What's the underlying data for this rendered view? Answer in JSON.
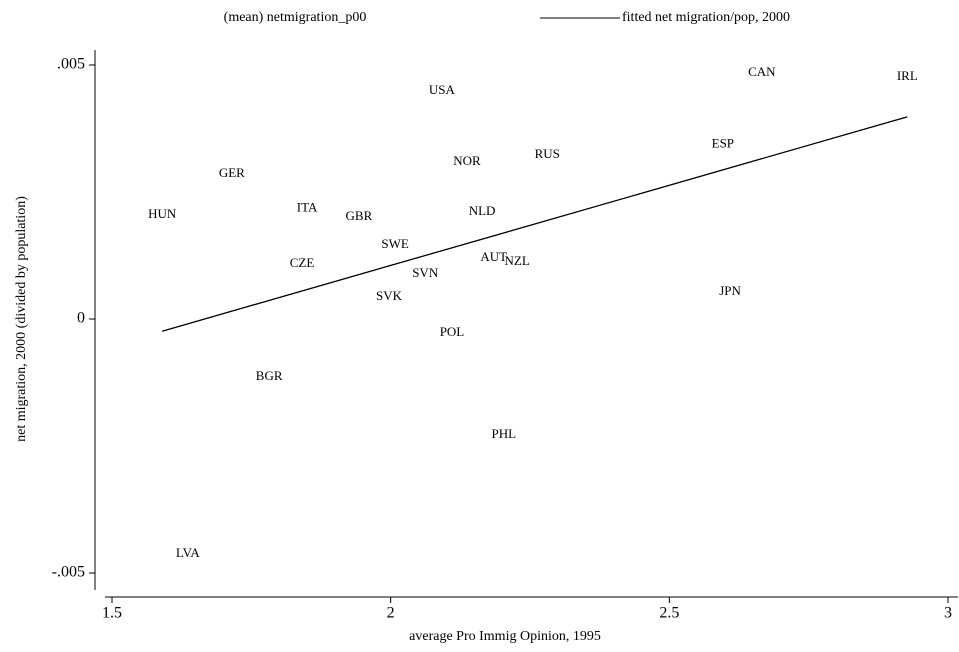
{
  "chart_data": {
    "type": "scatter",
    "xlabel": "average Pro Immig Opinion, 1995",
    "ylabel": "net migration, 2000 (divided by population)",
    "xlim": [
      1.5,
      3
    ],
    "ylim": [
      -0.005,
      0.005
    ],
    "xticks": [
      1.5,
      2,
      2.5,
      3
    ],
    "yticks": [
      {
        "value": -0.005,
        "label": "-.005"
      },
      0,
      {
        "value": 0.005,
        "label": ".005"
      }
    ],
    "grid": false,
    "legend": "top",
    "series": [
      {
        "name": "(mean) netmigration_p00",
        "type": "scatter",
        "color": "#000000",
        "labels": [
          "USA",
          "CAN",
          "IRL",
          "ESP",
          "NOR",
          "RUS",
          "GER",
          "HUN",
          "ITA",
          "GBR",
          "NLD",
          "SWE",
          "AUT",
          "NZL",
          "CZE",
          "SVN",
          "SVK",
          "JPN",
          "POL",
          "BGR",
          "PHL",
          "LVA"
        ],
        "x": [
          2.092,
          2.666,
          2.927,
          2.596,
          2.137,
          2.281,
          1.715,
          1.59,
          1.85,
          1.943,
          2.164,
          2.008,
          2.185,
          2.227,
          1.841,
          2.062,
          1.997,
          2.609,
          2.11,
          1.782,
          2.203,
          1.636
        ],
        "values": [
          0.00449,
          0.00484,
          0.00476,
          0.00343,
          0.00309,
          0.00323,
          0.00285,
          0.00205,
          0.00217,
          0.00201,
          0.00211,
          0.00146,
          0.0012,
          0.00112,
          0.00108,
          0.00089,
          0.00043,
          0.00053,
          -0.00028,
          -0.00114,
          -0.00228,
          -0.00463
        ]
      },
      {
        "name": "fitted net migration/pop, 2000",
        "type": "line",
        "color": "#000000",
        "x": [
          1.59,
          2.927
        ],
        "values": [
          -0.00024,
          0.00398
        ]
      }
    ]
  }
}
